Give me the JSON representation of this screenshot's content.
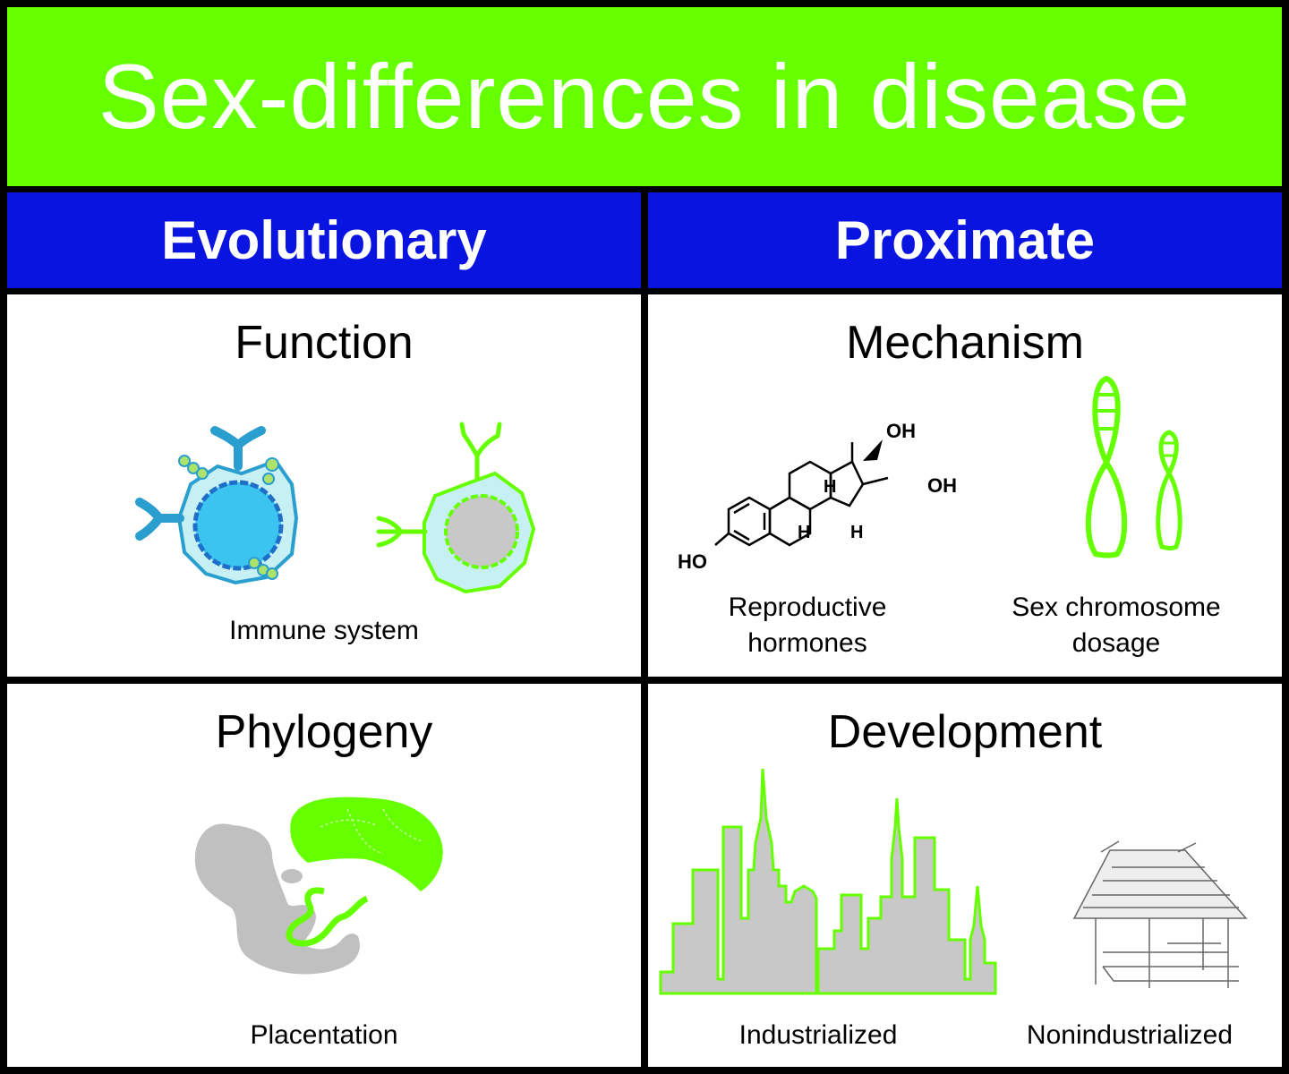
{
  "title": "Sex-differences in disease",
  "columns": {
    "left": "Evolutionary",
    "right": "Proximate"
  },
  "panels": {
    "function": {
      "heading": "Function",
      "caption": "Immune system"
    },
    "mechanism": {
      "heading": "Mechanism",
      "captions": {
        "hormones": "Reproductive hormones",
        "chromosomes": "Sex chromosome dosage"
      },
      "molecule_labels": {
        "oh_top": "OH",
        "oh_right": "OH",
        "ho": "HO",
        "h1": "H",
        "h2": "H",
        "h3": "H"
      }
    },
    "phylogeny": {
      "heading": "Phylogeny",
      "caption": "Placentation"
    },
    "development": {
      "heading": "Development",
      "captions": {
        "industrialized": "Industrialized",
        "nonindustrialized": "Nonindustrialized"
      }
    }
  },
  "colors": {
    "green": "#66ff00",
    "blue": "#0a14e0",
    "cell_blue": "#29b6e6",
    "grey": "#c8c8c8"
  }
}
